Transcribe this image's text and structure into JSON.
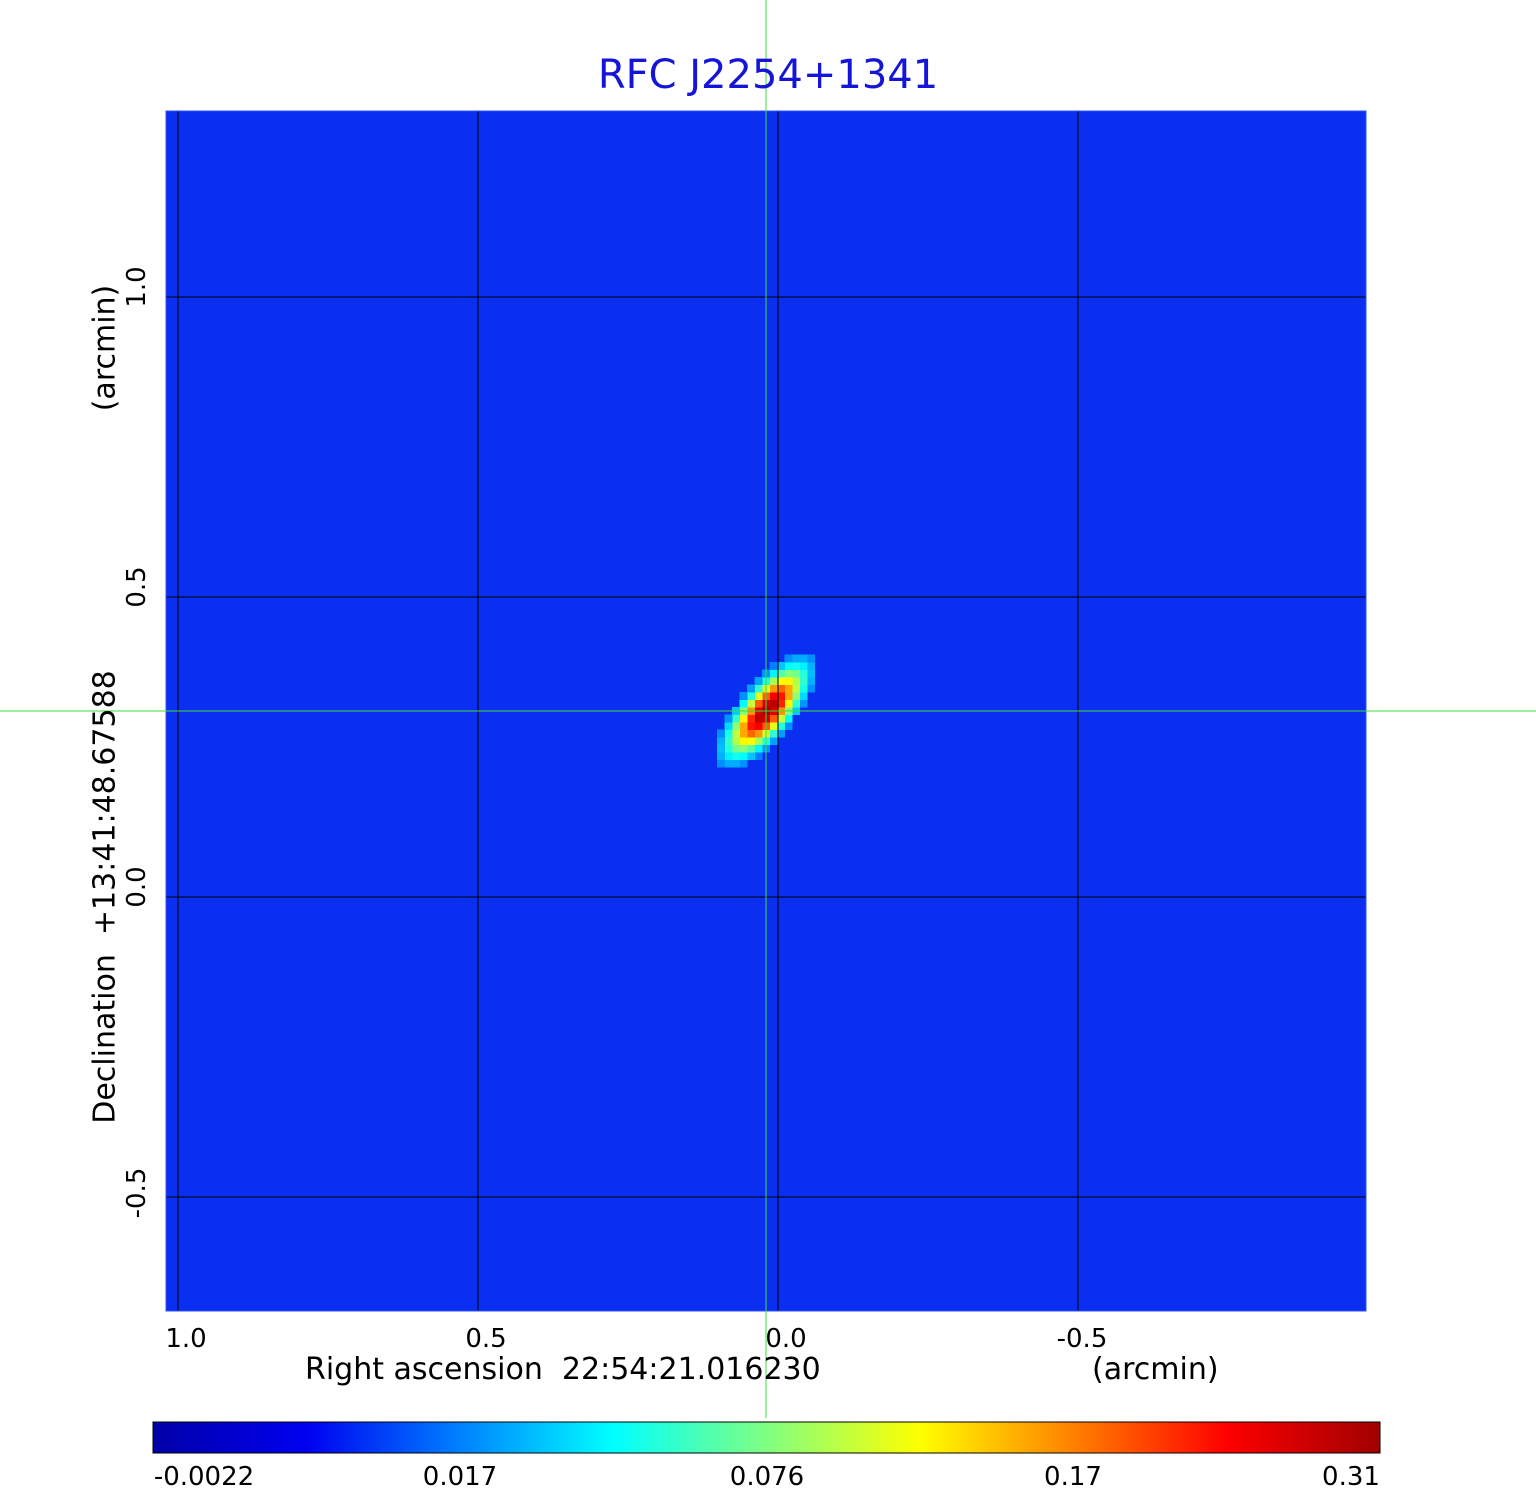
{
  "chart_data": {
    "type": "heatmap",
    "title": "RFC J2254+1341",
    "xlabel": "Right ascension  22:54:21.016230",
    "xunit": "(arcmin)",
    "ylabel": "Declination  +13:41:48.67588",
    "yunit": "(arcmin)",
    "xlim": [
      1.02,
      -0.98
    ],
    "ylim": [
      -0.69,
      1.31
    ],
    "xticks": [
      {
        "value": 1.0,
        "label": "1.0"
      },
      {
        "value": 0.5,
        "label": "0.5"
      },
      {
        "value": 0.0,
        "label": "0.0"
      },
      {
        "value": -0.5,
        "label": "-0.5"
      }
    ],
    "yticks": [
      {
        "value": 1.0,
        "label": "1.0"
      },
      {
        "value": 0.5,
        "label": "0.5"
      },
      {
        "value": 0.0,
        "label": "0.0"
      },
      {
        "value": -0.5,
        "label": "-0.5"
      }
    ],
    "grid": true,
    "crosshair": {
      "x": 0.02,
      "y": 0.31
    },
    "source_peak": {
      "x": 0.02,
      "y": 0.31,
      "value": 0.31
    },
    "source_elongation": {
      "major_arcmin": 0.09,
      "minor_arcmin": 0.035,
      "angle_deg": -50
    },
    "colorbar": {
      "scale": "nonlinear",
      "ticks": [
        "-0.0022",
        "0.017",
        "0.076",
        "0.17",
        "0.31"
      ],
      "min": -0.0022,
      "max": 0.31,
      "colormap": [
        "#0000a8",
        "#0000f0",
        "#0080ff",
        "#00ffff",
        "#80ff80",
        "#ffff00",
        "#ff8000",
        "#ff0000",
        "#a00000"
      ]
    },
    "colors": {
      "background": "#0a2ff0",
      "grid": "#000000",
      "crosshair": "#3ddc3d",
      "title": "#1515d8"
    }
  }
}
